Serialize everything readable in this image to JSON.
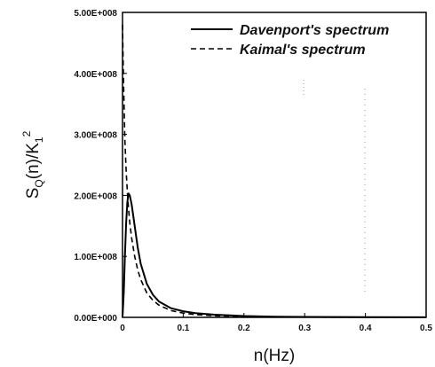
{
  "chart_data": {
    "type": "line",
    "xlabel": "n(Hz)",
    "ylabel": "S_Q(n)/K_1^2",
    "xlim": [
      0,
      0.5
    ],
    "ylim": [
      0,
      500000000
    ],
    "x_ticks": [
      "0",
      "0.1",
      "0.2",
      "0.3",
      "0.4",
      "0.5"
    ],
    "y_ticks": [
      "0.00E+000",
      "1.00E+008",
      "2.00E+008",
      "3.00E+008",
      "4.00E+008",
      "5.00E+008"
    ],
    "grid": false,
    "legend_position": "top-right",
    "series": [
      {
        "name": "Davenport's spectrum",
        "style": "solid",
        "x": [
          0,
          0.002,
          0.004,
          0.006,
          0.008,
          0.01,
          0.012,
          0.015,
          0.02,
          0.025,
          0.03,
          0.04,
          0.05,
          0.06,
          0.08,
          0.1,
          0.12,
          0.15,
          0.2,
          0.25,
          0.3,
          0.4,
          0.5
        ],
        "values": [
          0,
          40000000,
          100000000,
          155000000,
          190000000,
          203000000,
          200000000,
          185000000,
          150000000,
          115000000,
          88000000,
          55000000,
          37000000,
          26000000,
          15000000,
          10000000,
          7000000,
          4500000,
          2200000,
          1200000,
          700000,
          300000,
          150000
        ]
      },
      {
        "name": "Kaimal's spectrum",
        "style": "dashed",
        "x": [
          0,
          0.001,
          0.002,
          0.003,
          0.004,
          0.005,
          0.006,
          0.008,
          0.01,
          0.012,
          0.015,
          0.02,
          0.025,
          0.03,
          0.04,
          0.05,
          0.06,
          0.08,
          0.1,
          0.12,
          0.15,
          0.2,
          0.25,
          0.3,
          0.4,
          0.5
        ],
        "values": [
          480000000,
          420000000,
          370000000,
          325000000,
          290000000,
          265000000,
          240000000,
          205000000,
          178000000,
          155000000,
          130000000,
          100000000,
          78000000,
          62000000,
          40000000,
          28000000,
          20000000,
          11000000,
          7000000,
          4500000,
          2800000,
          1300000,
          700000,
          400000,
          150000,
          70000
        ]
      }
    ]
  }
}
